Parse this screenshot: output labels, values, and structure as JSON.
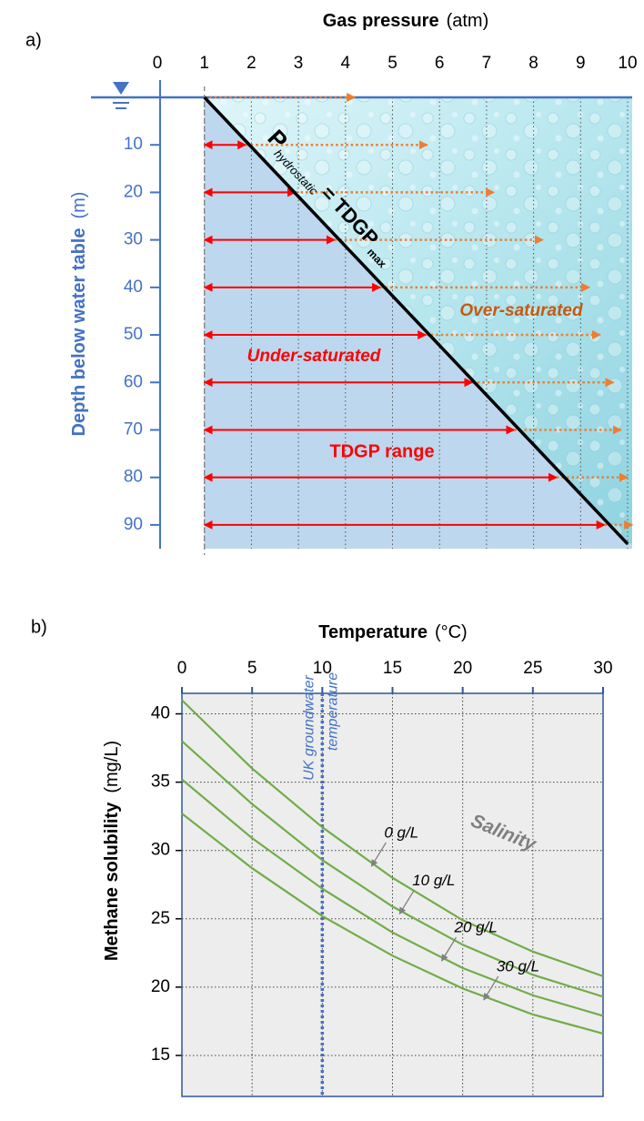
{
  "chart_data": [
    {
      "type": "line",
      "panel_label": "a)",
      "title": "Gas pressure",
      "x_unit": "(atm)",
      "y_label": "Depth below water table",
      "y_unit": "(m)",
      "axis_color": "#4472c4",
      "xlim": [
        0,
        10
      ],
      "xticks": [
        0,
        1,
        2,
        3,
        4,
        5,
        6,
        7,
        8,
        9,
        10
      ],
      "ylim": [
        0,
        95
      ],
      "yticks": [
        10,
        20,
        30,
        40,
        50,
        60,
        70,
        80,
        90
      ],
      "y_inverted": true,
      "grid": true,
      "series": [
        {
          "color": "#000000",
          "x": [
            1,
            10
          ],
          "values": [
            0,
            94
          ]
        }
      ],
      "line_label": {
        "p": "P",
        "sub": "hydrostatic",
        "eq": "= TDGP",
        "sub2": "max"
      },
      "under_saturated": {
        "label": "Under-saturated",
        "color": "#ff0000",
        "fill": "#bdd7ee"
      },
      "over_saturated": {
        "label": "Over-saturated",
        "color": "#c55a11",
        "fill": "#c9eef4"
      },
      "tdgp_range": {
        "label": "TDGP range",
        "color": "#ff0000",
        "depths": [
          10,
          20,
          30,
          40,
          50,
          60,
          70,
          80,
          90
        ],
        "start": 1,
        "end": [
          1.88,
          2.94,
          3.77,
          4.74,
          5.71,
          6.7,
          7.59,
          8.49,
          9.51
        ]
      },
      "oversaturation": {
        "color": "#ed7d31",
        "depths": [
          0,
          10,
          20,
          30,
          40,
          50,
          60,
          70,
          80,
          90
        ],
        "start": [
          1,
          1.88,
          2.94,
          3.77,
          4.74,
          5.71,
          6.7,
          7.59,
          8.49,
          9.51
        ],
        "end": [
          4.2,
          5.74,
          7.16,
          8.2,
          9.19,
          9.42,
          9.7,
          9.86,
          10,
          10.1
        ]
      }
    },
    {
      "type": "line",
      "panel_label": "b)",
      "title": "Temperature",
      "x_unit": "(°C)",
      "y_label": "Methane solubility",
      "y_unit": "(mg/L)",
      "axis_color": "#2f5597",
      "xlim": [
        0,
        30
      ],
      "xticks": [
        0,
        5,
        10,
        15,
        20,
        25,
        30
      ],
      "ylim": [
        12,
        41.5
      ],
      "yticks": [
        15,
        20,
        25,
        30,
        35,
        40
      ],
      "grid": true,
      "x": [
        0,
        5,
        10,
        15,
        20,
        25,
        30
      ],
      "series": [
        {
          "name": "0 g/L",
          "color": "#70ad47",
          "values": [
            41,
            36.0,
            31.7,
            28.0,
            24.9,
            22.6,
            20.8
          ]
        },
        {
          "name": "10 g/L",
          "color": "#70ad47",
          "values": [
            38,
            33.4,
            29.3,
            25.9,
            23.1,
            20.9,
            19.3
          ]
        },
        {
          "name": "20 g/L",
          "color": "#70ad47",
          "values": [
            35.2,
            30.9,
            27.2,
            24.0,
            21.4,
            19.4,
            17.9
          ]
        },
        {
          "name": "30 g/L",
          "color": "#70ad47",
          "values": [
            32.7,
            28.7,
            25.2,
            22.3,
            19.9,
            18.0,
            16.6
          ]
        }
      ],
      "annotation": "Salinity",
      "reference_line": {
        "x": 10,
        "label": [
          "UK groundwater",
          "temperature"
        ],
        "color": "#4472c4"
      }
    }
  ]
}
